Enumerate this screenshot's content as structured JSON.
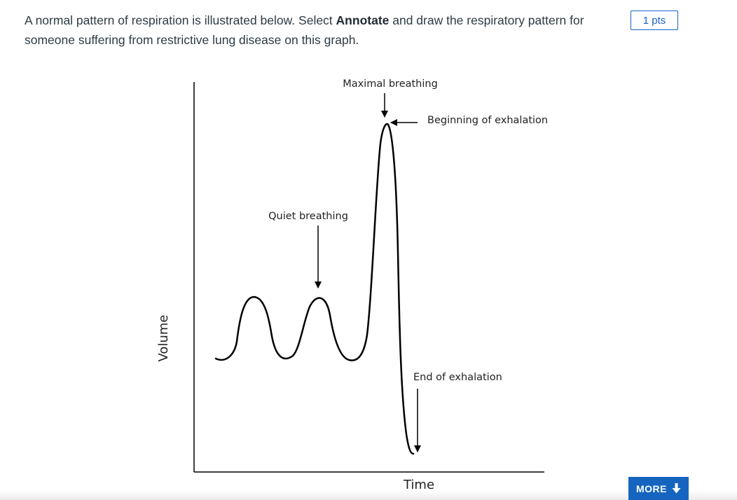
{
  "question": {
    "part1": "A normal pattern of respiration is illustrated below. Select ",
    "bold": "Annotate",
    "part2": " and draw the respiratory pattern for someone suffering from restrictive lung disease on this graph."
  },
  "points": "1 pts",
  "graph": {
    "y_axis_label": "Volume",
    "x_axis_label": "Time",
    "annotations": {
      "maximal": "Maximal breathing",
      "beginning_exhalation": "Beginning of exhalation",
      "quiet": "Quiet breathing",
      "end_exhalation": "End of exhalation"
    }
  },
  "more_button": {
    "label": "MORE",
    "icon": "arrow-down-icon"
  }
}
